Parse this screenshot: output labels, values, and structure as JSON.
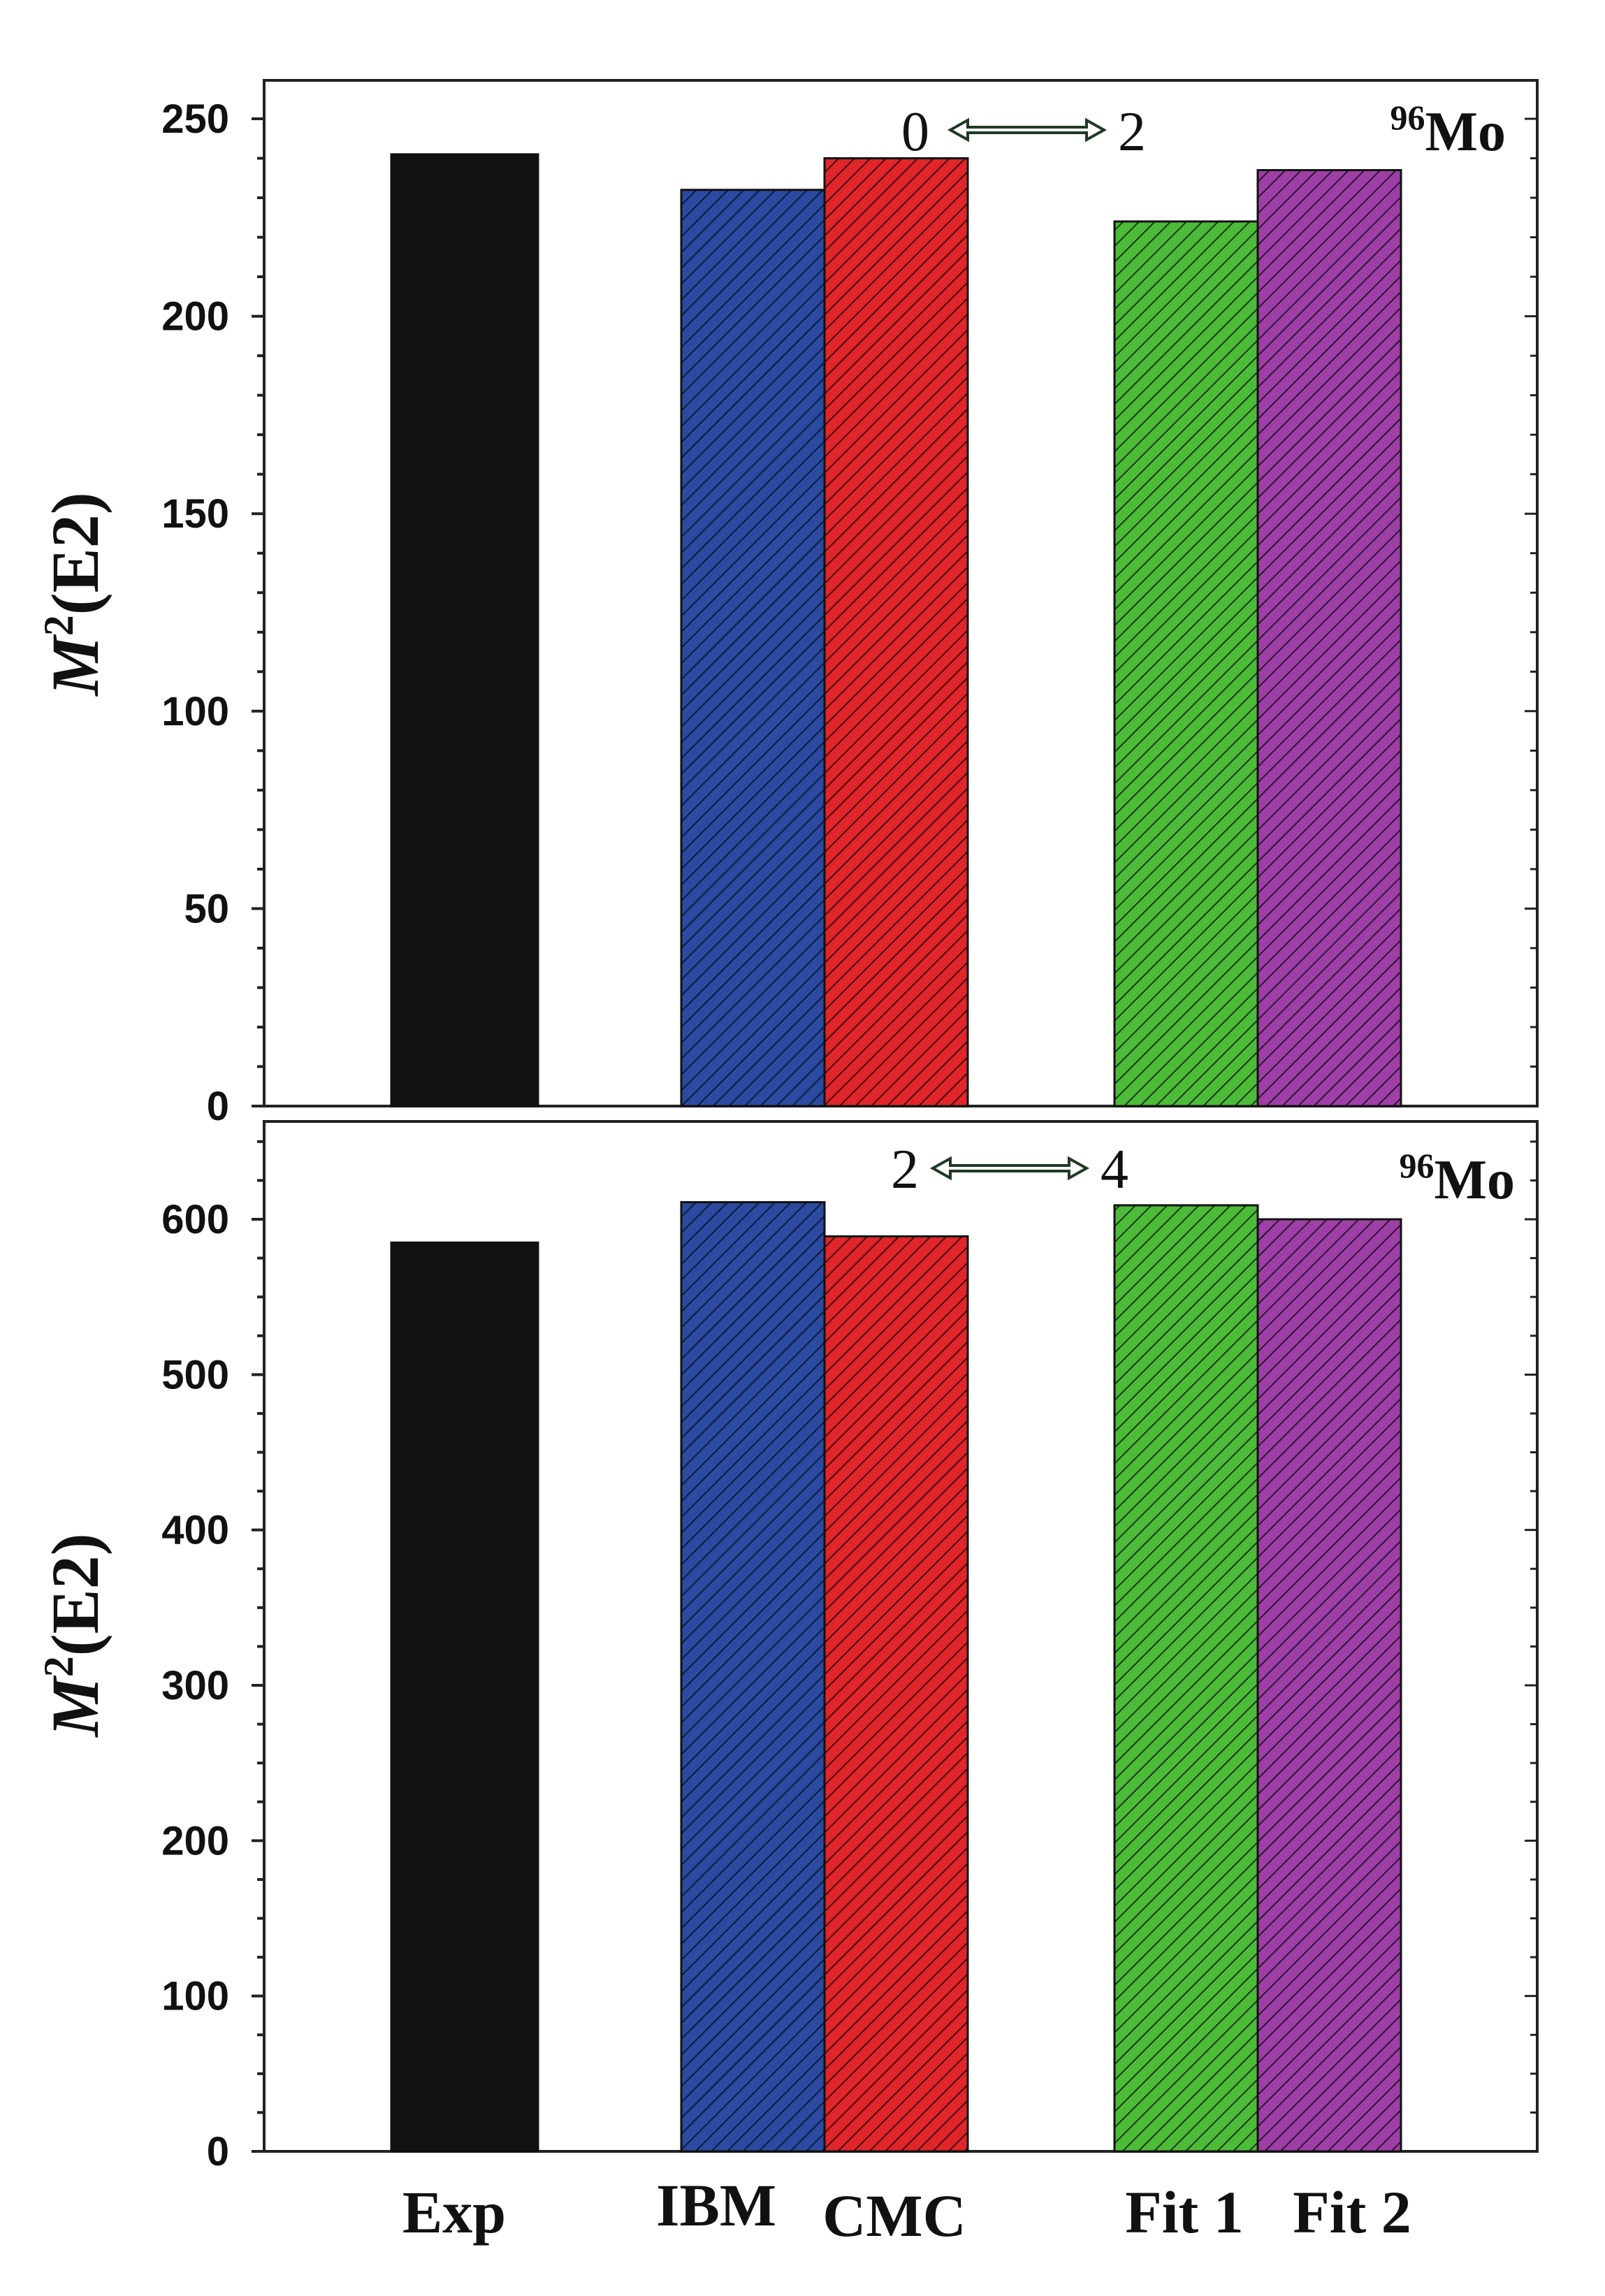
{
  "chart_data": [
    {
      "type": "bar",
      "panel": "top",
      "categories": [
        "Exp",
        "IBM",
        "CMC",
        "Fit 1",
        "Fit 2"
      ],
      "values": [
        241,
        232,
        240,
        224,
        237
      ],
      "ylabel": {
        "italic": "M",
        "sup": "2",
        "rest": "(E2)"
      },
      "ylim": [
        0,
        250
      ],
      "yticks": [
        "0",
        "50",
        "100",
        "150",
        "200",
        "250"
      ],
      "transition": {
        "from": "0",
        "to": "2"
      },
      "nucleus": {
        "mass": "96",
        "symbol": "Mo"
      }
    },
    {
      "type": "bar",
      "panel": "bottom",
      "categories": [
        "Exp",
        "IBM",
        "CMC",
        "Fit 1",
        "Fit 2"
      ],
      "values": [
        585,
        611,
        589,
        609,
        600
      ],
      "ylabel": {
        "italic": "M",
        "sup": "2",
        "rest": "(E2)"
      },
      "ylim": [
        0,
        650
      ],
      "yticks": [
        "0",
        "100",
        "200",
        "300",
        "400",
        "500",
        "600"
      ],
      "transition": {
        "from": "2",
        "to": "4"
      },
      "nucleus": {
        "mass": "96",
        "symbol": "Mo"
      }
    }
  ],
  "bar_styles": [
    {
      "category": "Exp",
      "color": "#111111",
      "hatched": false
    },
    {
      "category": "IBM",
      "color": "#2b4aa0",
      "hatched": true
    },
    {
      "category": "CMC",
      "color": "#e0252b",
      "hatched": true
    },
    {
      "category": "Fit 1",
      "color": "#4dbb3a",
      "hatched": true
    },
    {
      "category": "Fit 2",
      "color": "#9e3fa6",
      "hatched": true
    }
  ],
  "x_axis_labels": [
    "Exp",
    "IBM",
    "CMC",
    "Fit 1",
    "Fit 2"
  ]
}
